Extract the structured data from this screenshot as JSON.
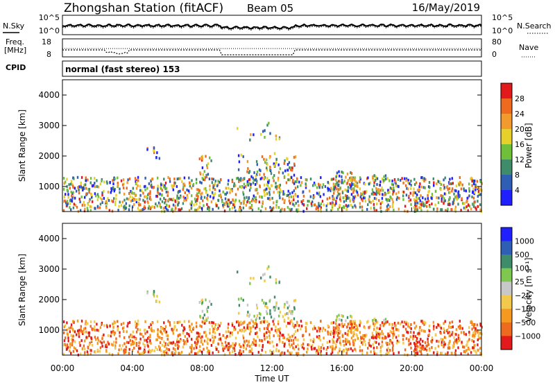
{
  "header": {
    "station": "Zhongshan Station (fitACF)",
    "beam": "Beam 05",
    "date": "16/May/2019"
  },
  "strip_labels": {
    "nsky": "N.Sky",
    "nsearch": "N.Search",
    "freq_top": "Freq.",
    "freq_unit": "[MHz]",
    "nave": "Nave",
    "cpid": "CPID",
    "cpid_value": "normal (fast stereo) 153"
  },
  "strip_ticks": {
    "noise_left": [
      "10^5",
      "10^0"
    ],
    "noise_right": [
      "10^5",
      "10^0"
    ],
    "freq_left": [
      "18",
      "8"
    ],
    "nave_right": [
      "80",
      "0"
    ]
  },
  "colors": {
    "power": [
      "#1f1fff",
      "#2e5fb5",
      "#3e8c6a",
      "#6fbf3a",
      "#e6d12b",
      "#f29a2e",
      "#ee6a1e",
      "#e31a1c"
    ],
    "velocity": [
      "#e31a1c",
      "#ee6a1e",
      "#f59a1f",
      "#f2c94c",
      "#c8c8c8",
      "#7ec850",
      "#3e8c6a",
      "#2e5fb5",
      "#1f1fff"
    ]
  },
  "chart_data": [
    {
      "type": "heatmap",
      "name": "power",
      "ylabel": "Slant Range [km]",
      "xlabel": "",
      "x_ticks": [
        "00:00",
        "04:00",
        "08:00",
        "12:00",
        "16:00",
        "20:00",
        "00:00"
      ],
      "y_ticks": [
        1000,
        2000,
        3000,
        4000
      ],
      "ylim": [
        180,
        4500
      ],
      "xlim_hours": [
        0,
        24
      ],
      "colorbar": {
        "label": "Power [dB]",
        "ticks": [
          "4",
          "8",
          "12",
          "16",
          "20",
          "24",
          "28"
        ],
        "range": [
          0,
          31
        ]
      }
    },
    {
      "type": "heatmap",
      "name": "velocity",
      "ylabel": "Slant Range [km]",
      "xlabel": "Time UT",
      "x_ticks": [
        "00:00",
        "04:00",
        "08:00",
        "12:00",
        "16:00",
        "20:00",
        "00:00"
      ],
      "y_ticks": [
        1000,
        2000,
        3000,
        4000
      ],
      "ylim": [
        180,
        4500
      ],
      "xlim_hours": [
        0,
        24
      ],
      "colorbar": {
        "label": "Velocity [m s⁻¹]",
        "ticks": [
          "1000",
          "500",
          "100",
          "25",
          "−25",
          "−100",
          "−500",
          "−1000"
        ]
      }
    }
  ]
}
